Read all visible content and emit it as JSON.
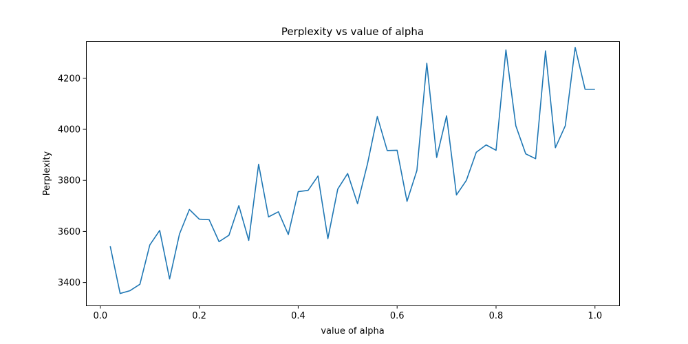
{
  "chart_data": {
    "type": "line",
    "title": "Perplexity vs value of alpha",
    "xlabel": "value of alpha",
    "ylabel": "Perplexity",
    "xlim": [
      -0.029,
      1.049
    ],
    "ylim": [
      3310,
      4345
    ],
    "xticks": [
      0.0,
      0.2,
      0.4,
      0.6,
      0.8,
      1.0
    ],
    "xtick_labels": [
      "0.0",
      "0.2",
      "0.4",
      "0.6",
      "0.8",
      "1.0"
    ],
    "yticks": [
      3400,
      3600,
      3800,
      4000,
      4200
    ],
    "ytick_labels": [
      "3400",
      "3600",
      "3800",
      "4000",
      "4200"
    ],
    "grid": false,
    "series": [
      {
        "color": "#1f77b4",
        "x": [
          0.02,
          0.04,
          0.06,
          0.08,
          0.1,
          0.12,
          0.14,
          0.16,
          0.18,
          0.2,
          0.22,
          0.24,
          0.26,
          0.28,
          0.3,
          0.32,
          0.34,
          0.36,
          0.38,
          0.4,
          0.42,
          0.44,
          0.46,
          0.48,
          0.5,
          0.52,
          0.54,
          0.56,
          0.58,
          0.6,
          0.62,
          0.64,
          0.66,
          0.68,
          0.7,
          0.72,
          0.74,
          0.76,
          0.78,
          0.8,
          0.82,
          0.84,
          0.86,
          0.88,
          0.9,
          0.92,
          0.94,
          0.96,
          0.98,
          1.0
        ],
        "y": [
          3542,
          3357,
          3368,
          3393,
          3547,
          3604,
          3414,
          3590,
          3686,
          3648,
          3646,
          3560,
          3585,
          3701,
          3565,
          3863,
          3657,
          3677,
          3588,
          3756,
          3761,
          3817,
          3572,
          3766,
          3827,
          3709,
          3864,
          4050,
          3917,
          3918,
          3718,
          3839,
          4259,
          3890,
          4053,
          3743,
          3800,
          3910,
          3939,
          3918,
          4311,
          4014,
          3904,
          3885,
          4307,
          3928,
          4014,
          4321,
          4157,
          4157
        ]
      }
    ]
  }
}
